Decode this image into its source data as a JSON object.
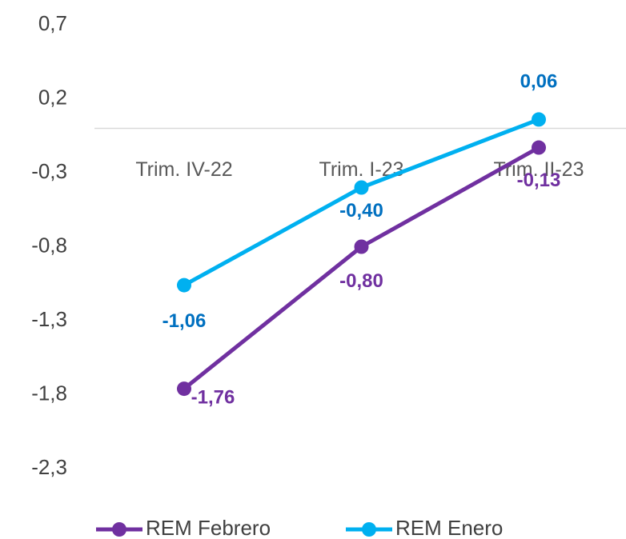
{
  "chart_data": {
    "type": "line",
    "categories": [
      "Trim. IV-22",
      "Trim. I-23",
      "Trim. II-23"
    ],
    "series": [
      {
        "name": "REM Febrero",
        "color": "#7030a0",
        "label_color": "#7030a0",
        "values": [
          -1.76,
          -0.8,
          -0.13
        ],
        "value_labels": [
          "-1,76",
          "-0,80",
          "-0,13"
        ]
      },
      {
        "name": "REM Enero",
        "color": "#00b0f0",
        "label_color": "#0070c0",
        "values": [
          -1.06,
          -0.4,
          0.06
        ],
        "value_labels": [
          "-1,06",
          "-0,40",
          "0,06"
        ]
      }
    ],
    "ylim": [
      -2.3,
      0.7
    ],
    "yticks": [
      {
        "value": 0.7,
        "label": "0,7"
      },
      {
        "value": 0.2,
        "label": "0,2"
      },
      {
        "value": -0.3,
        "label": "-0,3"
      },
      {
        "value": -0.8,
        "label": "-0,8"
      },
      {
        "value": -1.3,
        "label": "-1,3"
      },
      {
        "value": -1.8,
        "label": "-1,8"
      },
      {
        "value": -2.3,
        "label": "-2,3"
      }
    ],
    "grid": false,
    "legend": "bottom"
  }
}
